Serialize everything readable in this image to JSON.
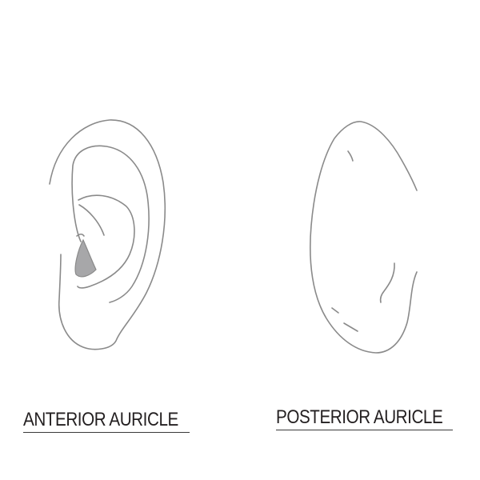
{
  "figure": {
    "line_color": "#8a8a8a",
    "fill_color": "#a7a7a9",
    "caption_color": "#231f20",
    "anterior": {
      "caption": "ANTERIOR AURICLE",
      "icon": "anterior-auricle-drawing"
    },
    "posterior": {
      "caption": "POSTERIOR AURICLE",
      "icon": "posterior-auricle-drawing"
    }
  }
}
